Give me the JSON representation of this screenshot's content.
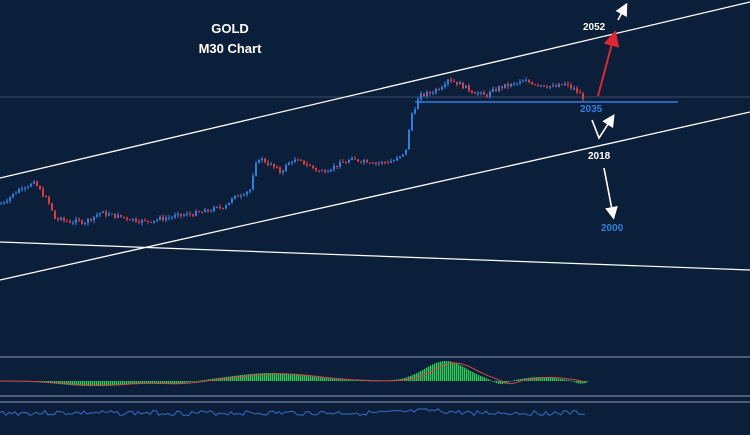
{
  "chart_data": {
    "type": "candlestick",
    "title": "GOLD",
    "subtitle": "M30 Chart",
    "colors": {
      "background": "#0c1f3a",
      "bull_candle": "#2f7fe0",
      "bear_candle": "#e03a3a",
      "trendline": "#ffffff",
      "support_line": "#2f7fe0",
      "histogram": "#2ecc55",
      "signal_line": "#d24848",
      "oscillator": "#3070c8",
      "arrow_up_red": "#e0262e",
      "arrow_white": "#ffffff"
    },
    "levels": [
      {
        "label": "2052",
        "value": 2052,
        "color": "#ffffff"
      },
      {
        "label": "2035",
        "value": 2035,
        "color": "#2f7fe0"
      },
      {
        "label": "2018",
        "value": 2018,
        "color": "#ffffff"
      },
      {
        "label": "2000",
        "value": 2000,
        "color": "#2f7fe0"
      }
    ],
    "price_path": [
      [
        0,
        2009
      ],
      [
        12,
        2012
      ],
      [
        22,
        2015
      ],
      [
        35,
        2016
      ],
      [
        48,
        2010
      ],
      [
        55,
        2004
      ],
      [
        70,
        2003
      ],
      [
        85,
        2003
      ],
      [
        100,
        2006
      ],
      [
        115,
        2005
      ],
      [
        130,
        2004
      ],
      [
        145,
        2003
      ],
      [
        160,
        2004
      ],
      [
        180,
        2005
      ],
      [
        200,
        2006
      ],
      [
        222,
        2008
      ],
      [
        238,
        2012
      ],
      [
        250,
        2014
      ],
      [
        258,
        2025
      ],
      [
        268,
        2023
      ],
      [
        280,
        2020
      ],
      [
        292,
        2024
      ],
      [
        305,
        2023
      ],
      [
        320,
        2020
      ],
      [
        335,
        2022
      ],
      [
        350,
        2024
      ],
      [
        365,
        2024
      ],
      [
        380,
        2023
      ],
      [
        395,
        2024
      ],
      [
        405,
        2026
      ],
      [
        412,
        2040
      ],
      [
        420,
        2046
      ],
      [
        430,
        2047
      ],
      [
        440,
        2049
      ],
      [
        448,
        2052
      ],
      [
        460,
        2050
      ],
      [
        470,
        2048
      ],
      [
        485,
        2046
      ],
      [
        500,
        2049
      ],
      [
        515,
        2050
      ],
      [
        525,
        2051
      ],
      [
        540,
        2050
      ],
      [
        555,
        2049
      ],
      [
        565,
        2050
      ],
      [
        575,
        2048
      ],
      [
        585,
        2045
      ]
    ],
    "trend_channel": {
      "upper_start": [
        0,
        2024
      ],
      "upper_end": [
        750,
        2064
      ],
      "lower_start": [
        0,
        1988
      ],
      "lower_end": [
        750,
        2035
      ]
    },
    "horizontal_support": 2045,
    "indicator_histogram_shape": "momentum"
  }
}
